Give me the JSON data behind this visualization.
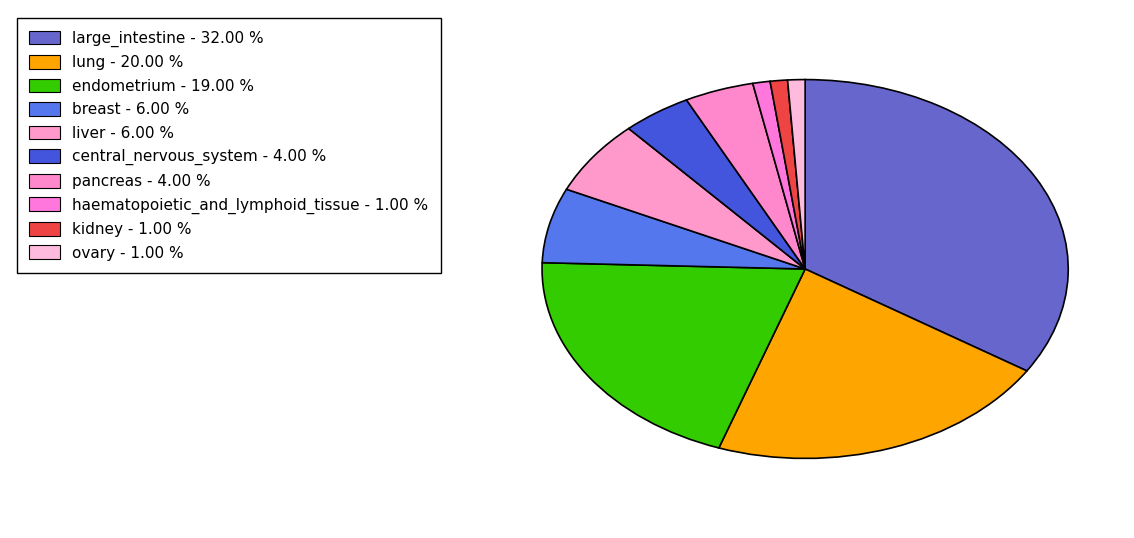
{
  "labels": [
    "large_intestine",
    "lung",
    "endometrium",
    "breast",
    "liver",
    "central_nervous_system",
    "pancreas",
    "haematopoietic_and_lymphoid_tissue",
    "kidney",
    "ovary"
  ],
  "values": [
    32.0,
    20.0,
    19.0,
    6.0,
    6.0,
    4.0,
    4.0,
    1.0,
    1.0,
    1.0
  ],
  "colors": [
    "#6666CC",
    "#FFA500",
    "#33CC00",
    "#5577EE",
    "#FF99CC",
    "#4455DD",
    "#FF88CC",
    "#FF77DD",
    "#EE4444",
    "#FFBBDD"
  ],
  "legend_labels": [
    "large_intestine - 32.00 %",
    "lung - 20.00 %",
    "endometrium - 19.00 %",
    "breast - 6.00 %",
    "liver - 6.00 %",
    "central_nervous_system - 4.00 %",
    "pancreas - 4.00 %",
    "haematopoietic_and_lymphoid_tissue - 1.00 %",
    "kidney - 1.00 %",
    "ovary - 1.00 %"
  ],
  "startangle": 90,
  "counterclock": false,
  "figsize": [
    11.34,
    5.38
  ],
  "dpi": 100,
  "aspect_ratio": 0.72
}
